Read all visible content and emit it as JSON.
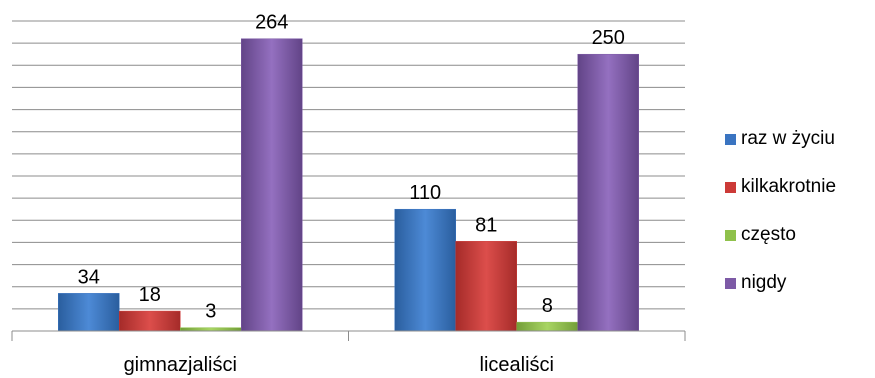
{
  "chart_data": {
    "type": "bar",
    "categories": [
      "gimnazjaliści",
      "licealiści"
    ],
    "series": [
      {
        "name": "raz w życiu",
        "values": [
          34,
          110
        ],
        "color": "#3a74c1"
      },
      {
        "name": "kilkakrotnie",
        "values": [
          18,
          81
        ],
        "color": "#cc3a37"
      },
      {
        "name": "często",
        "values": [
          3,
          8
        ],
        "color": "#8fc14b"
      },
      {
        "name": "nigdy",
        "values": [
          264,
          250
        ],
        "color": "#7d5aa6"
      }
    ],
    "ylim": [
      0,
      280
    ],
    "grid": true,
    "legend": "right"
  }
}
